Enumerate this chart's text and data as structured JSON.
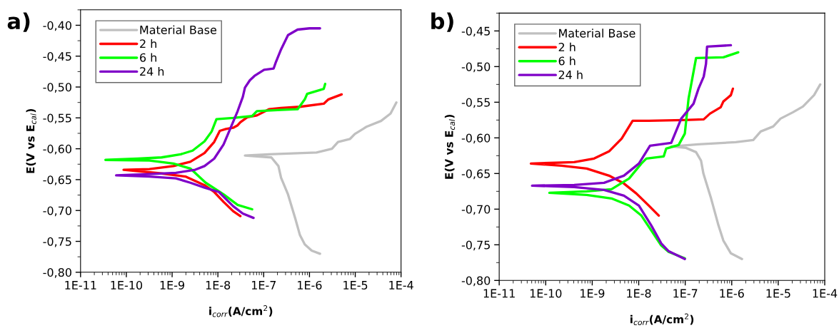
{
  "chart_data": [
    {
      "type": "line",
      "xlabel": "i$_{corr}$(A/cm$^{2}$)",
      "ylabel": "E(V vs E$_{cal}$)",
      "annotations": [
        "a)"
      ],
      "log": "x",
      "grid": false,
      "legend": "top left",
      "marker": "none",
      "line_style": "solid",
      "xlim": [
        1e-11,
        0.0001
      ],
      "ylim": [
        -0.8,
        -0.375
      ],
      "xticks": [
        {
          "value": 1e-11,
          "label": "1E-11"
        },
        {
          "value": 1e-10,
          "label": "1E-10"
        },
        {
          "value": 1e-09,
          "label": "1E-9"
        },
        {
          "value": 1e-08,
          "label": "1E-8"
        },
        {
          "value": 1e-07,
          "label": "1E-7"
        },
        {
          "value": 1e-06,
          "label": "1E-6"
        },
        {
          "value": 1e-05,
          "label": "1E-5"
        },
        {
          "value": 0.0001,
          "label": "1E-4"
        }
      ],
      "yticks": [
        {
          "value": -0.8,
          "label": "-0,80"
        },
        {
          "value": -0.75,
          "label": "-0,75"
        },
        {
          "value": -0.7,
          "label": "-0,70"
        },
        {
          "value": -0.65,
          "label": "-0,65"
        },
        {
          "value": -0.6,
          "label": "-0,60"
        },
        {
          "value": -0.55,
          "label": "-0,55"
        },
        {
          "value": -0.5,
          "label": "-0,50"
        },
        {
          "value": -0.45,
          "label": "-0,45"
        },
        {
          "value": -0.4,
          "label": "-0,40"
        }
      ],
      "series": [
        {
          "name": "Material Base",
          "color": "#c0c0c0",
          "x": [
            1.7e-06,
            1.12e-06,
            7.9e-07,
            6.2e-07,
            4.9e-07,
            3.4e-07,
            2.4e-07,
            2.1e-07,
            1.47e-07,
            3.9e-08,
            1.3e-07,
            1.43e-06,
            3.1e-06,
            4.2e-06,
            7.7e-06,
            9.8e-06,
            1.8e-05,
            3.65e-05,
            5.9e-05,
            7.9e-05
          ],
          "values": [
            -0.77,
            -0.765,
            -0.755,
            -0.74,
            -0.713,
            -0.674,
            -0.647,
            -0.628,
            -0.614,
            -0.611,
            -0.609,
            -0.606,
            -0.6,
            -0.589,
            -0.584,
            -0.576,
            -0.564,
            -0.555,
            -0.543,
            -0.525
          ]
        },
        {
          "name": "2 h",
          "color": "#ff0000",
          "x": [
            3.1e-08,
            2.15e-08,
            1.33e-08,
            8.3e-09,
            5.1e-09,
            1.95e-09,
            5.9e-10,
            8.7e-11,
            3.2e-10,
            1.07e-09,
            2.5e-09,
            5.1e-09,
            8.3e-09,
            1.1e-08,
            1.5e-08,
            2.15e-08,
            2.7e-08,
            3.1e-08,
            4.4e-08,
            7.1e-08,
            1.3e-07,
            2.4e-07,
            6.2e-07,
            2.05e-06,
            2.6e-06,
            5.05e-06
          ],
          "values": [
            -0.709,
            -0.701,
            -0.686,
            -0.67,
            -0.659,
            -0.645,
            -0.64,
            -0.634,
            -0.633,
            -0.628,
            -0.621,
            -0.607,
            -0.589,
            -0.571,
            -0.568,
            -0.566,
            -0.562,
            -0.557,
            -0.549,
            -0.546,
            -0.536,
            -0.534,
            -0.532,
            -0.527,
            -0.52,
            -0.512
          ]
        },
        {
          "name": "6 h",
          "color": "#00ff00",
          "x": [
            5.6e-08,
            2.7e-08,
            1.33e-08,
            5.4e-09,
            2.5e-09,
            1.07e-09,
            3.2e-10,
            3.5e-11,
            1.78e-10,
            5.9e-10,
            1.54e-09,
            2.8e-09,
            5.1e-09,
            7.3e-09,
            9.3e-09,
            2.15e-08,
            5.6e-08,
            7.1e-08,
            2.4e-07,
            5.5e-07,
            7.9e-07,
            8.9e-07,
            2.05e-06,
            2.2e-06
          ],
          "values": [
            -0.698,
            -0.691,
            -0.674,
            -0.655,
            -0.632,
            -0.624,
            -0.619,
            -0.618,
            -0.616,
            -0.614,
            -0.609,
            -0.603,
            -0.588,
            -0.572,
            -0.552,
            -0.55,
            -0.547,
            -0.539,
            -0.537,
            -0.536,
            -0.52,
            -0.511,
            -0.503,
            -0.495
          ]
        },
        {
          "name": "24 h",
          "color": "#7f00c8",
          "x": [
            6e-08,
            3.5e-08,
            2.15e-08,
            1.05e-08,
            5.1e-09,
            2.5e-09,
            1.21e-09,
            3.2e-10,
            6e-11,
            3.2e-10,
            1.21e-09,
            3.2e-09,
            5.1e-09,
            8.3e-09,
            1.33e-08,
            1.9e-08,
            2.7e-08,
            3.5e-08,
            3.9e-08,
            5e-08,
            6.3e-08,
            1.02e-07,
            1.65e-07,
            1.86e-07,
            2.4e-07,
            3.4e-07,
            5.5e-07,
            1e-06,
            1.7e-06
          ],
          "values": [
            -0.712,
            -0.705,
            -0.693,
            -0.67,
            -0.663,
            -0.655,
            -0.648,
            -0.645,
            -0.643,
            -0.641,
            -0.639,
            -0.634,
            -0.628,
            -0.616,
            -0.593,
            -0.566,
            -0.539,
            -0.516,
            -0.501,
            -0.489,
            -0.482,
            -0.472,
            -0.47,
            -0.459,
            -0.439,
            -0.416,
            -0.407,
            -0.405,
            -0.405
          ]
        }
      ]
    },
    {
      "type": "line",
      "xlabel": "i$_{corr}$(A/cm$^{2}$)",
      "ylabel": "E(V vs E$_{cal}$)",
      "annotations": [
        "b)"
      ],
      "log": "x",
      "grid": false,
      "legend": "top left",
      "marker": "none",
      "line_style": "solid",
      "xlim": [
        1e-11,
        0.0001
      ],
      "ylim": [
        -0.8,
        -0.425
      ],
      "xticks": [
        {
          "value": 1e-11,
          "label": "1E-11"
        },
        {
          "value": 1e-10,
          "label": "1E-10"
        },
        {
          "value": 1e-09,
          "label": "1E-9"
        },
        {
          "value": 1e-08,
          "label": "1E-8"
        },
        {
          "value": 1e-07,
          "label": "1E-7"
        },
        {
          "value": 1e-06,
          "label": "1E-6"
        },
        {
          "value": 1e-05,
          "label": "1E-5"
        },
        {
          "value": 0.0001,
          "label": "1E-4"
        }
      ],
      "yticks": [
        {
          "value": -0.8,
          "label": "-0,80"
        },
        {
          "value": -0.75,
          "label": "-0,75"
        },
        {
          "value": -0.7,
          "label": "-0,70"
        },
        {
          "value": -0.65,
          "label": "-0,65"
        },
        {
          "value": -0.6,
          "label": "-0,60"
        },
        {
          "value": -0.55,
          "label": "-0,55"
        },
        {
          "value": -0.5,
          "label": "-0,50"
        },
        {
          "value": -0.45,
          "label": "-0,45"
        }
      ],
      "series": [
        {
          "name": "Material Base",
          "color": "#c0c0c0",
          "x": [
            1.66e-06,
            9.6e-07,
            6.6e-07,
            5.2e-07,
            3.6e-07,
            2.46e-07,
            2.19e-07,
            1.71e-07,
            1.04e-07,
            5e-08,
            1.93e-07,
            1.22e-06,
            2.9e-06,
            4.2e-06,
            7.8e-06,
            1.12e-05,
            2.08e-05,
            3.4e-05,
            5.9e-05,
            8e-05
          ],
          "values": [
            -0.77,
            -0.762,
            -0.744,
            -0.723,
            -0.685,
            -0.65,
            -0.632,
            -0.62,
            -0.614,
            -0.612,
            -0.609,
            -0.606,
            -0.603,
            -0.591,
            -0.584,
            -0.573,
            -0.564,
            -0.556,
            -0.54,
            -0.525
          ]
        },
        {
          "name": "2 h",
          "color": "#ff0000",
          "x": [
            2.7e-08,
            1.65e-08,
            8.9e-09,
            4.8e-09,
            2.3e-09,
            7.6e-10,
            2.2e-10,
            4.8e-11,
            4.1e-10,
            1.1e-09,
            2.3e-09,
            4.3e-09,
            7.4e-09,
            1.65e-08,
            9.2e-08,
            2.5e-07,
            3.4e-07,
            5.8e-07,
            6.6e-07,
            9.6e-07,
            1.06e-06
          ],
          "values": [
            -0.709,
            -0.695,
            -0.678,
            -0.664,
            -0.653,
            -0.643,
            -0.639,
            -0.636,
            -0.634,
            -0.629,
            -0.619,
            -0.601,
            -0.576,
            -0.576,
            -0.575,
            -0.574,
            -0.566,
            -0.557,
            -0.549,
            -0.54,
            -0.531
          ]
        },
        {
          "name": "6 h",
          "color": "#00ff00",
          "x": [
            9.8e-08,
            4.4e-08,
            3.05e-08,
            1.87e-08,
            1.14e-08,
            6.2e-09,
            2.6e-09,
            7.6e-10,
            1.2e-10,
            7.6e-10,
            2.6e-09,
            6.2e-09,
            1.14e-08,
            1.46e-08,
            3.45e-08,
            3.9e-08,
            7.2e-08,
            9.8e-08,
            1.18e-07,
            1.71e-07,
            6.6e-07,
            1.38e-06
          ],
          "values": [
            -0.769,
            -0.76,
            -0.751,
            -0.73,
            -0.709,
            -0.695,
            -0.685,
            -0.68,
            -0.677,
            -0.675,
            -0.672,
            -0.657,
            -0.636,
            -0.629,
            -0.626,
            -0.615,
            -0.61,
            -0.594,
            -0.545,
            -0.488,
            -0.487,
            -0.48
          ]
        },
        {
          "name": "24 h",
          "color": "#7f00c8",
          "x": [
            9.8e-08,
            4.4e-08,
            3.05e-08,
            1.87e-08,
            1.01e-08,
            4.8e-09,
            1.8e-09,
            4.1e-10,
            5.1e-11,
            4.1e-10,
            1.8e-09,
            4.8e-09,
            1.01e-08,
            1.75e-08,
            5e-08,
            8.2e-08,
            1.51e-07,
            1.93e-07,
            2.5e-07,
            2.8e-07,
            2.95e-07,
            9.6e-07
          ],
          "values": [
            -0.77,
            -0.759,
            -0.748,
            -0.723,
            -0.695,
            -0.681,
            -0.673,
            -0.669,
            -0.667,
            -0.666,
            -0.663,
            -0.653,
            -0.636,
            -0.611,
            -0.607,
            -0.573,
            -0.552,
            -0.531,
            -0.514,
            -0.496,
            -0.472,
            -0.47
          ]
        }
      ]
    }
  ]
}
